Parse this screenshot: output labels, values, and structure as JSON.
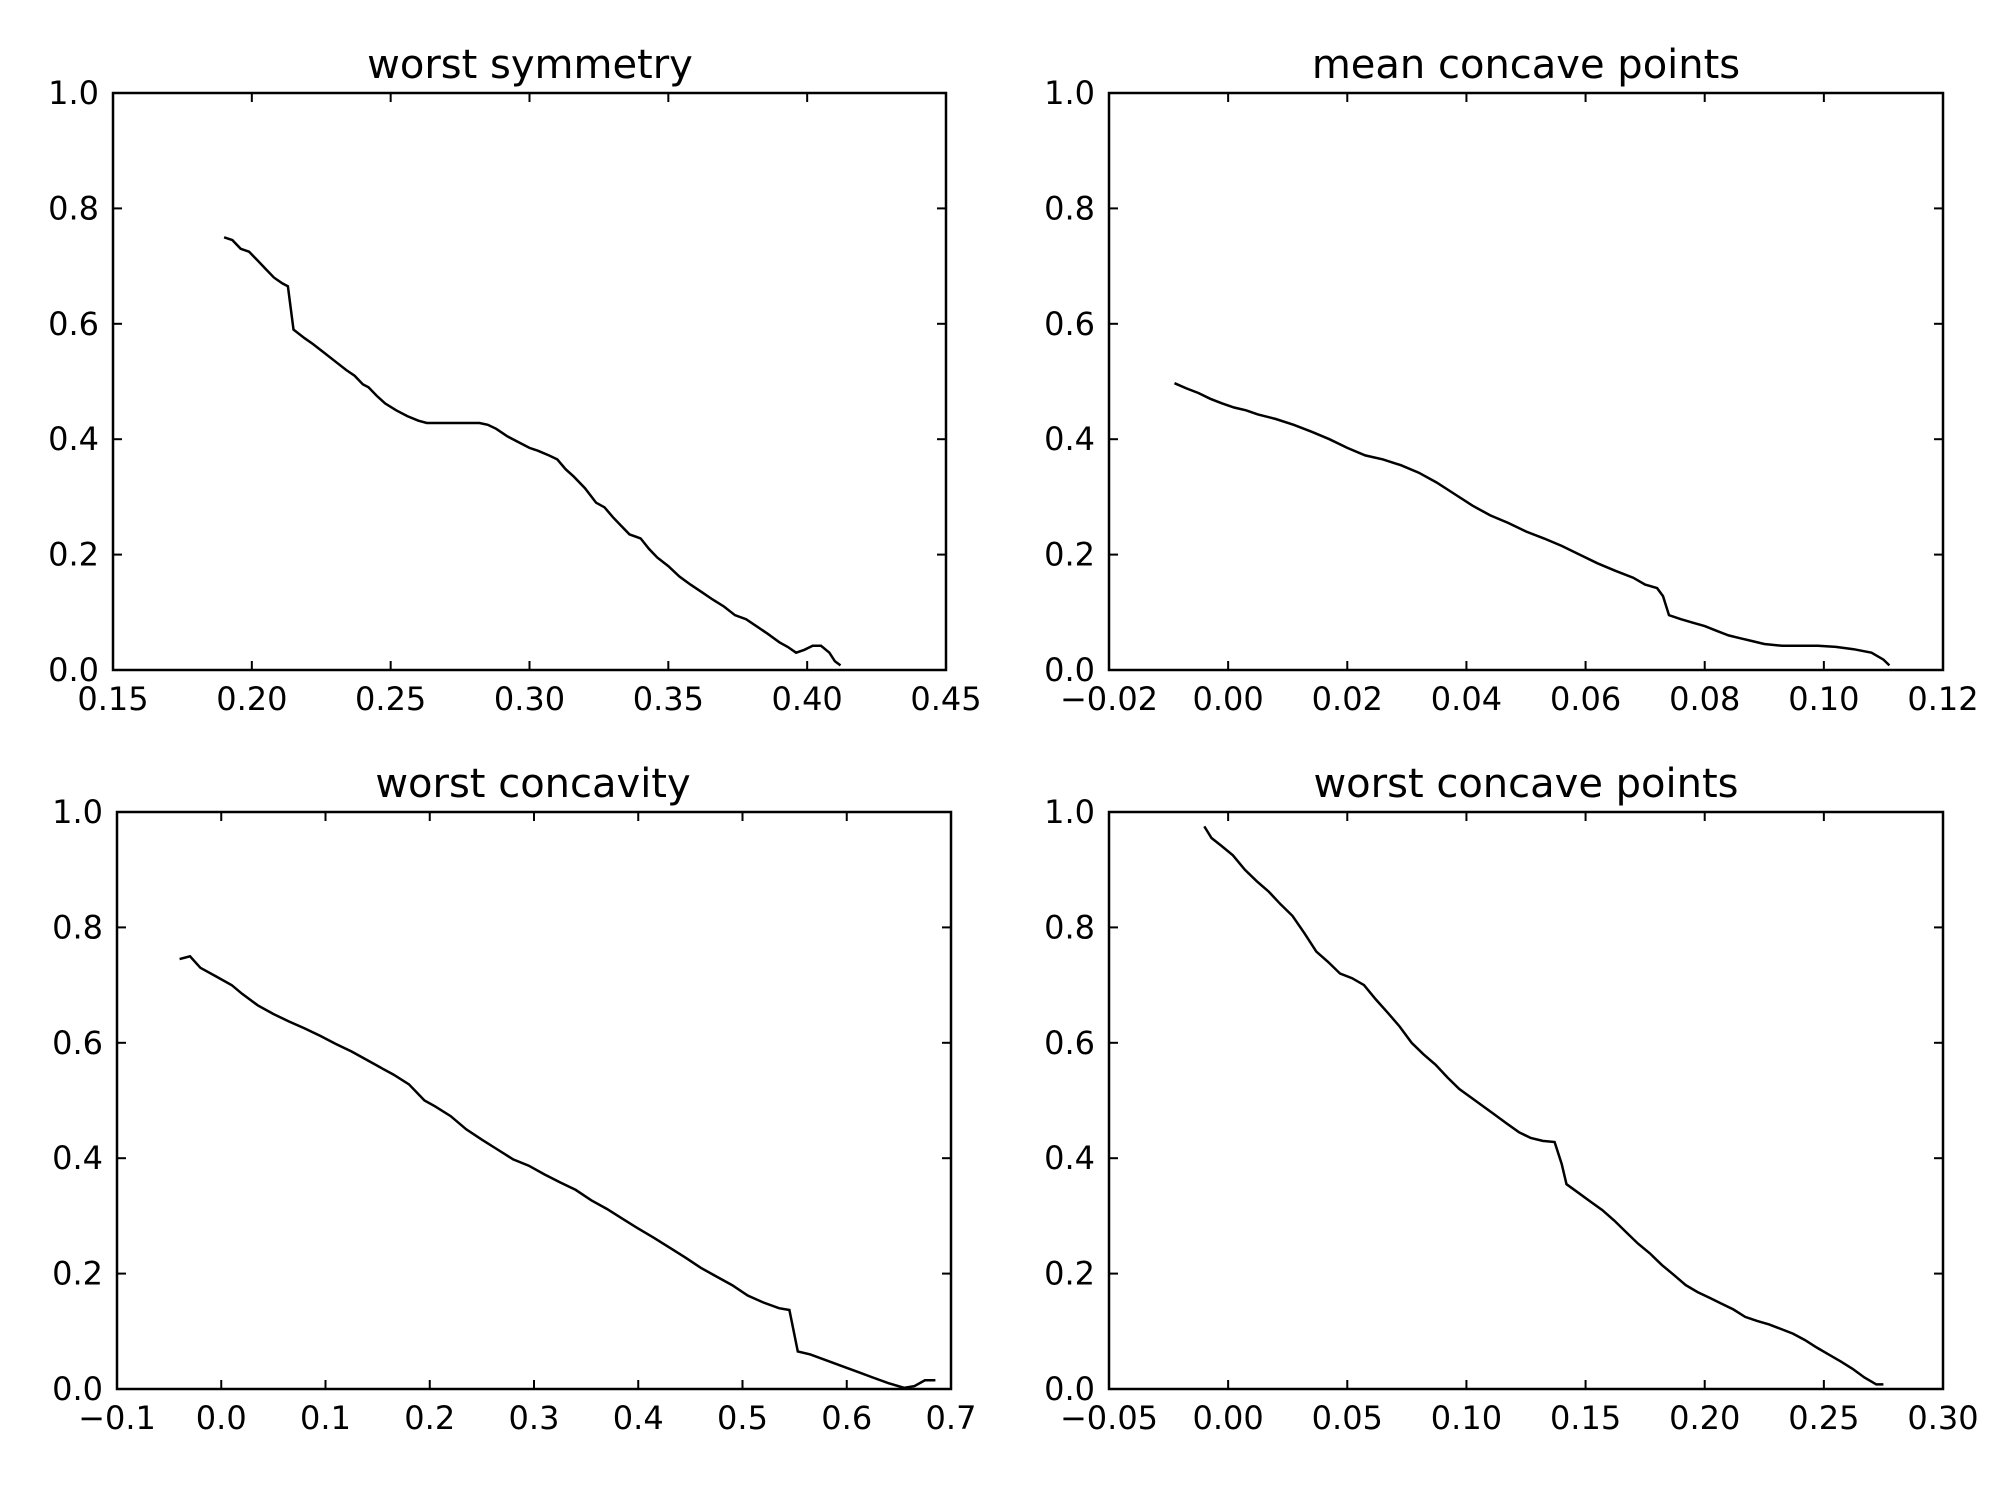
{
  "chart_data": [
    {
      "type": "line",
      "title": "worst symmetry",
      "xlim": [
        0.15,
        0.45
      ],
      "ylim": [
        0.0,
        1.0
      ],
      "xticks": [
        0.15,
        0.2,
        0.25,
        0.3,
        0.35,
        0.4,
        0.45
      ],
      "xtick_labels": [
        "0.15",
        "0.20",
        "0.25",
        "0.30",
        "0.35",
        "0.40",
        "0.45"
      ],
      "yticks": [
        0.0,
        0.2,
        0.4,
        0.6,
        0.8,
        1.0
      ],
      "ytick_labels": [
        "0.0",
        "0.2",
        "0.4",
        "0.6",
        "0.8",
        "1.0"
      ],
      "color": "#000000",
      "series": [
        {
          "x": [
            0.19,
            0.193,
            0.196,
            0.199,
            0.202,
            0.205,
            0.208,
            0.211,
            0.213,
            0.215,
            0.219,
            0.222,
            0.226,
            0.23,
            0.234,
            0.237,
            0.24,
            0.242,
            0.245,
            0.248,
            0.252,
            0.256,
            0.26,
            0.263,
            0.266,
            0.27,
            0.273,
            0.276,
            0.279,
            0.282,
            0.285,
            0.288,
            0.292,
            0.296,
            0.3,
            0.303,
            0.307,
            0.31,
            0.313,
            0.316,
            0.32,
            0.324,
            0.327,
            0.33,
            0.333,
            0.336,
            0.34,
            0.343,
            0.346,
            0.35,
            0.354,
            0.358,
            0.362,
            0.366,
            0.37,
            0.374,
            0.378,
            0.382,
            0.386,
            0.39,
            0.393,
            0.396,
            0.399,
            0.402,
            0.405,
            0.408,
            0.41,
            0.412
          ],
          "y": [
            0.75,
            0.745,
            0.73,
            0.725,
            0.71,
            0.695,
            0.68,
            0.67,
            0.665,
            0.59,
            0.575,
            0.565,
            0.55,
            0.535,
            0.52,
            0.51,
            0.495,
            0.49,
            0.475,
            0.462,
            0.45,
            0.44,
            0.432,
            0.428,
            0.428,
            0.428,
            0.428,
            0.428,
            0.428,
            0.428,
            0.425,
            0.418,
            0.405,
            0.395,
            0.385,
            0.38,
            0.372,
            0.365,
            0.348,
            0.335,
            0.315,
            0.29,
            0.282,
            0.265,
            0.25,
            0.235,
            0.228,
            0.21,
            0.195,
            0.18,
            0.162,
            0.148,
            0.135,
            0.122,
            0.11,
            0.095,
            0.088,
            0.075,
            0.062,
            0.048,
            0.04,
            0.03,
            0.035,
            0.042,
            0.042,
            0.03,
            0.015,
            0.008
          ]
        }
      ]
    },
    {
      "type": "line",
      "title": "mean concave points",
      "xlim": [
        -0.02,
        0.12
      ],
      "ylim": [
        0.0,
        1.0
      ],
      "xticks": [
        -0.02,
        0.0,
        0.02,
        0.04,
        0.06,
        0.08,
        0.1,
        0.12
      ],
      "xtick_labels": [
        "−0.02",
        "0.00",
        "0.02",
        "0.04",
        "0.06",
        "0.08",
        "0.10",
        "0.12"
      ],
      "yticks": [
        0.0,
        0.2,
        0.4,
        0.6,
        0.8,
        1.0
      ],
      "ytick_labels": [
        "0.0",
        "0.2",
        "0.4",
        "0.6",
        "0.8",
        "1.0"
      ],
      "color": "#000000",
      "series": [
        {
          "x": [
            -0.009,
            -0.007,
            -0.005,
            -0.003,
            -0.001,
            0.001,
            0.003,
            0.005,
            0.008,
            0.011,
            0.014,
            0.017,
            0.02,
            0.023,
            0.026,
            0.029,
            0.032,
            0.035,
            0.038,
            0.041,
            0.044,
            0.047,
            0.05,
            0.053,
            0.056,
            0.059,
            0.062,
            0.065,
            0.068,
            0.07,
            0.072,
            0.073,
            0.074,
            0.076,
            0.078,
            0.08,
            0.082,
            0.084,
            0.086,
            0.088,
            0.09,
            0.093,
            0.096,
            0.099,
            0.102,
            0.105,
            0.108,
            0.11,
            0.111
          ],
          "y": [
            0.497,
            0.488,
            0.48,
            0.47,
            0.462,
            0.455,
            0.45,
            0.443,
            0.435,
            0.425,
            0.413,
            0.4,
            0.385,
            0.372,
            0.365,
            0.355,
            0.342,
            0.325,
            0.305,
            0.285,
            0.268,
            0.255,
            0.24,
            0.228,
            0.215,
            0.2,
            0.185,
            0.172,
            0.16,
            0.148,
            0.142,
            0.128,
            0.095,
            0.088,
            0.082,
            0.076,
            0.068,
            0.06,
            0.055,
            0.05,
            0.045,
            0.042,
            0.042,
            0.042,
            0.04,
            0.036,
            0.03,
            0.018,
            0.008
          ]
        }
      ]
    },
    {
      "type": "line",
      "title": "worst concavity",
      "xlim": [
        -0.1,
        0.7
      ],
      "ylim": [
        0.0,
        1.0
      ],
      "xticks": [
        -0.1,
        0.0,
        0.1,
        0.2,
        0.3,
        0.4,
        0.5,
        0.6,
        0.7
      ],
      "xtick_labels": [
        "−0.1",
        "0.0",
        "0.1",
        "0.2",
        "0.3",
        "0.4",
        "0.5",
        "0.6",
        "0.7"
      ],
      "yticks": [
        0.0,
        0.2,
        0.4,
        0.6,
        0.8,
        1.0
      ],
      "ytick_labels": [
        "0.0",
        "0.2",
        "0.4",
        "0.6",
        "0.8",
        "1.0"
      ],
      "color": "#000000",
      "series": [
        {
          "x": [
            -0.04,
            -0.03,
            -0.02,
            -0.005,
            0.01,
            0.02,
            0.035,
            0.05,
            0.065,
            0.08,
            0.095,
            0.11,
            0.125,
            0.14,
            0.155,
            0.165,
            0.18,
            0.195,
            0.205,
            0.22,
            0.235,
            0.25,
            0.265,
            0.28,
            0.295,
            0.31,
            0.325,
            0.34,
            0.355,
            0.37,
            0.385,
            0.4,
            0.415,
            0.43,
            0.445,
            0.46,
            0.475,
            0.49,
            0.505,
            0.52,
            0.535,
            0.545,
            0.553,
            0.565,
            0.58,
            0.595,
            0.61,
            0.625,
            0.64,
            0.655,
            0.665,
            0.675,
            0.685
          ],
          "y": [
            0.745,
            0.75,
            0.73,
            0.715,
            0.7,
            0.685,
            0.665,
            0.65,
            0.637,
            0.625,
            0.612,
            0.598,
            0.585,
            0.57,
            0.555,
            0.545,
            0.528,
            0.5,
            0.49,
            0.473,
            0.45,
            0.432,
            0.415,
            0.398,
            0.387,
            0.372,
            0.358,
            0.345,
            0.327,
            0.312,
            0.295,
            0.278,
            0.262,
            0.245,
            0.228,
            0.21,
            0.195,
            0.18,
            0.162,
            0.15,
            0.14,
            0.137,
            0.065,
            0.06,
            0.05,
            0.04,
            0.03,
            0.02,
            0.01,
            0.002,
            0.005,
            0.015,
            0.015
          ]
        }
      ]
    },
    {
      "type": "line",
      "title": "worst concave points",
      "xlim": [
        -0.05,
        0.3
      ],
      "ylim": [
        0.0,
        1.0
      ],
      "xticks": [
        -0.05,
        0.0,
        0.05,
        0.1,
        0.15,
        0.2,
        0.25,
        0.3
      ],
      "xtick_labels": [
        "−0.05",
        "0.00",
        "0.05",
        "0.10",
        "0.15",
        "0.20",
        "0.25",
        "0.30"
      ],
      "yticks": [
        0.0,
        0.2,
        0.4,
        0.6,
        0.8,
        1.0
      ],
      "ytick_labels": [
        "0.0",
        "0.2",
        "0.4",
        "0.6",
        "0.8",
        "1.0"
      ],
      "color": "#000000",
      "series": [
        {
          "x": [
            -0.01,
            -0.007,
            -0.003,
            0.002,
            0.007,
            0.012,
            0.017,
            0.022,
            0.027,
            0.032,
            0.037,
            0.042,
            0.047,
            0.052,
            0.057,
            0.062,
            0.067,
            0.072,
            0.077,
            0.082,
            0.087,
            0.092,
            0.097,
            0.102,
            0.107,
            0.112,
            0.117,
            0.122,
            0.127,
            0.132,
            0.137,
            0.14,
            0.142,
            0.147,
            0.152,
            0.157,
            0.162,
            0.167,
            0.172,
            0.177,
            0.182,
            0.187,
            0.192,
            0.197,
            0.202,
            0.207,
            0.212,
            0.217,
            0.222,
            0.227,
            0.232,
            0.237,
            0.242,
            0.247,
            0.252,
            0.257,
            0.262,
            0.267,
            0.272,
            0.275
          ],
          "y": [
            0.975,
            0.955,
            0.942,
            0.925,
            0.9,
            0.88,
            0.862,
            0.84,
            0.82,
            0.79,
            0.758,
            0.74,
            0.72,
            0.712,
            0.7,
            0.675,
            0.652,
            0.628,
            0.6,
            0.58,
            0.562,
            0.54,
            0.52,
            0.505,
            0.49,
            0.475,
            0.46,
            0.445,
            0.435,
            0.43,
            0.428,
            0.39,
            0.355,
            0.34,
            0.325,
            0.31,
            0.292,
            0.272,
            0.252,
            0.235,
            0.215,
            0.198,
            0.18,
            0.168,
            0.158,
            0.148,
            0.138,
            0.125,
            0.118,
            0.112,
            0.104,
            0.096,
            0.085,
            0.072,
            0.06,
            0.048,
            0.035,
            0.02,
            0.008,
            0.008
          ]
        }
      ]
    }
  ]
}
